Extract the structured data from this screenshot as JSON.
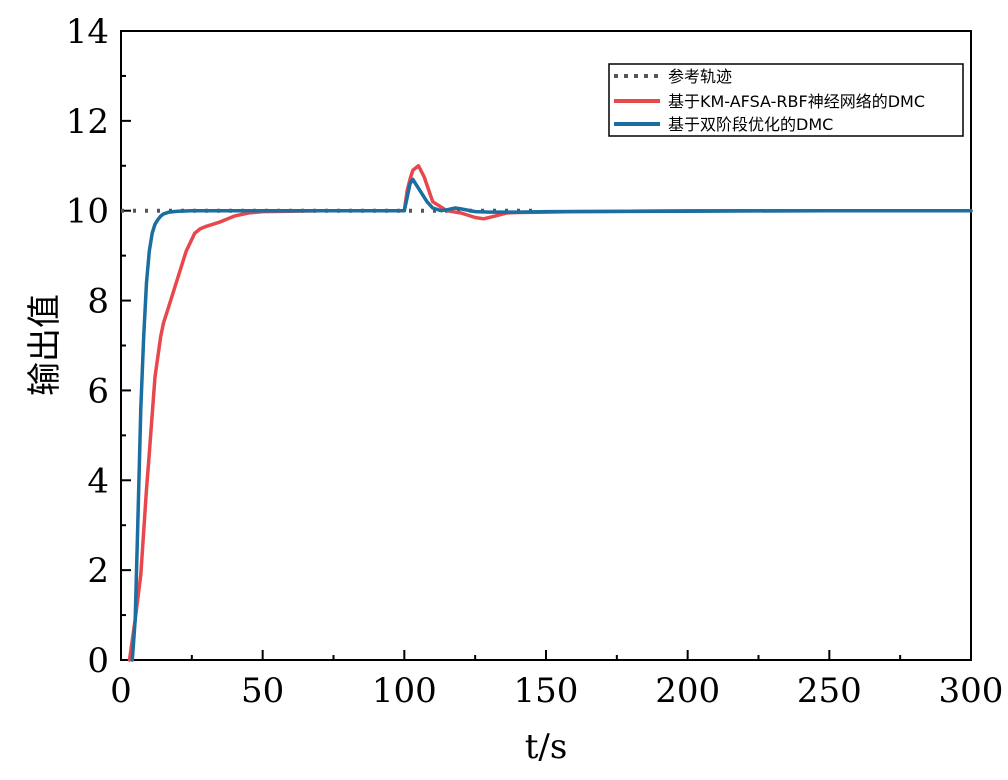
{
  "chart_data": {
    "type": "line",
    "title": "",
    "xlabel": "t/s",
    "ylabel": "输出值",
    "xlim": [
      0,
      300
    ],
    "ylim": [
      0,
      14
    ],
    "xticks": [
      "0",
      "50",
      "100",
      "150",
      "200",
      "250",
      "300"
    ],
    "yticks": [
      "0",
      "2",
      "4",
      "6",
      "8",
      "10",
      "12",
      "14"
    ],
    "grid": false,
    "legend_position": "top-right",
    "series": [
      {
        "name": "参考轨迹",
        "color": "#555555",
        "style": "dotted",
        "x": [
          0,
          10,
          20,
          30,
          40,
          50,
          60,
          70,
          80,
          90,
          100,
          110,
          120,
          130,
          140,
          146
        ],
        "y": [
          10,
          10,
          10,
          10,
          10,
          10,
          10,
          10,
          10,
          10,
          10,
          10,
          10,
          10,
          10,
          10
        ]
      },
      {
        "name": "基于KM-AFSA-RBF神经网络的DMC",
        "color": "#e8474c",
        "style": "solid",
        "x": [
          3,
          5,
          7,
          9,
          10,
          12,
          14,
          15,
          17,
          20,
          23,
          26,
          28,
          30,
          35,
          40,
          45,
          50,
          60,
          70,
          80,
          90,
          100,
          101,
          102,
          103,
          105,
          107,
          110,
          115,
          120,
          125,
          128,
          132,
          136,
          140,
          150,
          160,
          180,
          200,
          250,
          300
        ],
        "y": [
          0,
          0.9,
          1.9,
          3.8,
          4.6,
          6.3,
          7.2,
          7.5,
          7.9,
          8.5,
          9.1,
          9.5,
          9.6,
          9.65,
          9.75,
          9.88,
          9.95,
          9.98,
          9.99,
          10.0,
          10.0,
          10.0,
          10.0,
          10.45,
          10.7,
          10.9,
          11.0,
          10.75,
          10.2,
          10.0,
          9.95,
          9.85,
          9.82,
          9.88,
          9.95,
          9.96,
          9.97,
          9.98,
          9.99,
          10.0,
          10.0,
          10.0
        ]
      },
      {
        "name": "基于双阶段优化的DMC",
        "color": "#1a6ea0",
        "style": "solid",
        "x": [
          4,
          5,
          6,
          7,
          8,
          9,
          10,
          11,
          12,
          13,
          14,
          15,
          17,
          20,
          25,
          30,
          50,
          80,
          100,
          101,
          102,
          103,
          105,
          108,
          110,
          113,
          115,
          118,
          120,
          125,
          130,
          140,
          150,
          200,
          250,
          300
        ],
        "y": [
          0,
          0.9,
          3.2,
          5.6,
          7.2,
          8.4,
          9.1,
          9.5,
          9.7,
          9.8,
          9.88,
          9.93,
          9.97,
          9.99,
          10.0,
          10.0,
          10.0,
          10.0,
          10.0,
          10.3,
          10.6,
          10.7,
          10.5,
          10.2,
          10.06,
          10.0,
          10.02,
          10.06,
          10.04,
          9.98,
          9.97,
          9.97,
          9.98,
          9.99,
          10.0,
          10.0
        ]
      }
    ]
  }
}
